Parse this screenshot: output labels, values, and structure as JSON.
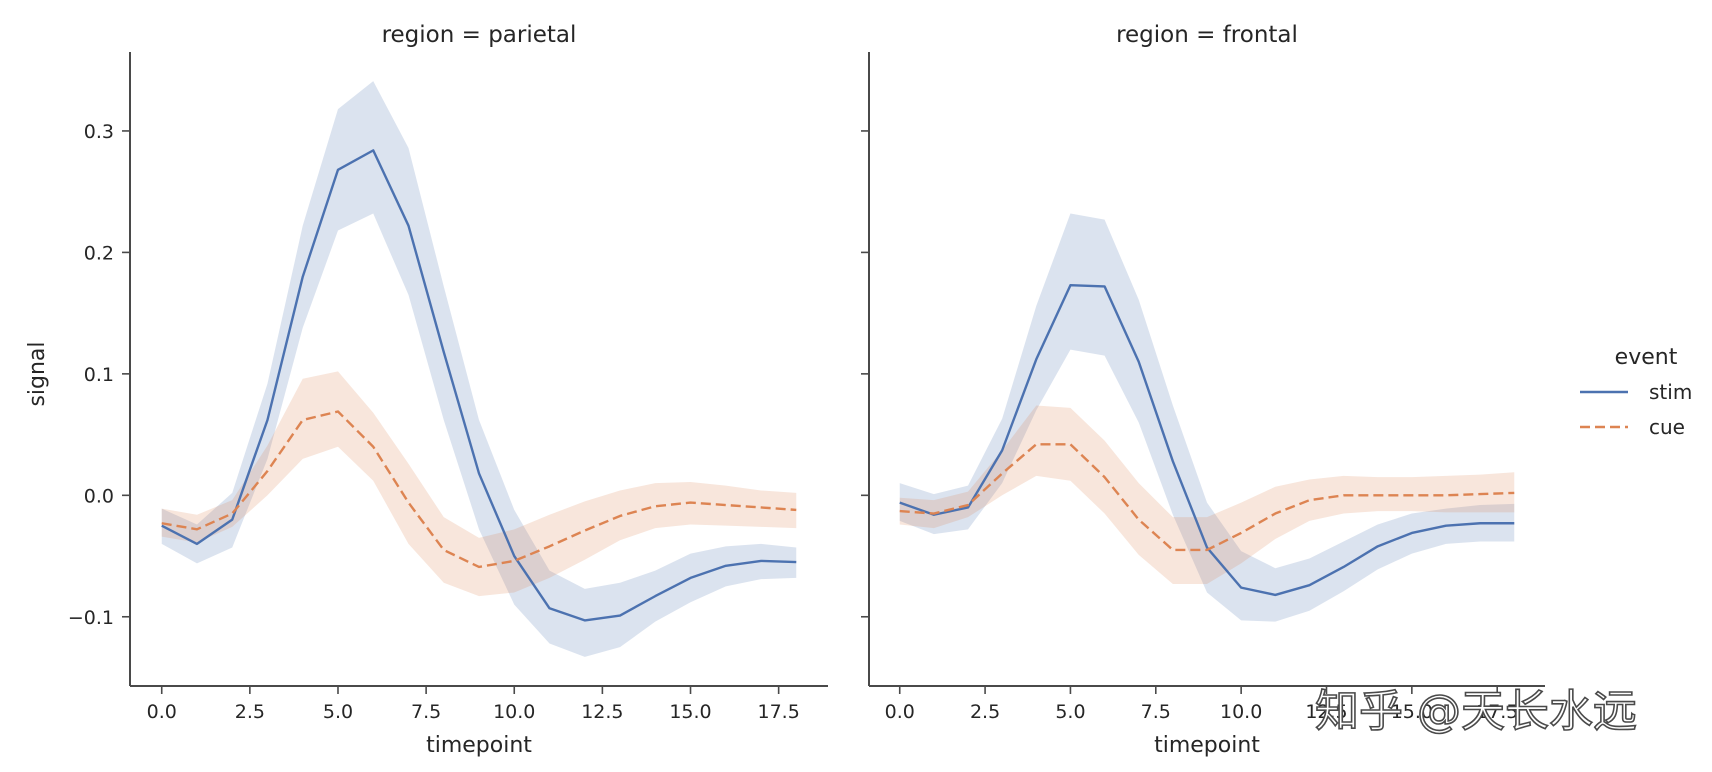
{
  "chart_data": {
    "type": "line",
    "facet_variable": "region",
    "hue_variable": "event",
    "xlabel": "timepoint",
    "ylabel": "signal",
    "xlim": [
      -0.9,
      18.9
    ],
    "ylim": [
      -0.157,
      0.365
    ],
    "xticks": [
      0,
      2.5,
      5,
      7.5,
      10,
      12.5,
      15,
      17.5
    ],
    "xtick_labels": [
      "0.0",
      "2.5",
      "5.0",
      "7.5",
      "10.0",
      "12.5",
      "15.0",
      "17.5"
    ],
    "yticks": [
      -0.1,
      0,
      0.1,
      0.2,
      0.3
    ],
    "ytick_labels": [
      "−0.1",
      "0.0",
      "0.1",
      "0.2",
      "0.3"
    ],
    "x": [
      0,
      1,
      2,
      3,
      4,
      5,
      6,
      7,
      8,
      9,
      10,
      11,
      12,
      13,
      14,
      15,
      16,
      17,
      18
    ],
    "legend": {
      "title": "event",
      "position": "right",
      "entries": [
        {
          "label": "stim",
          "color": "#4c72b0",
          "dash": "solid"
        },
        {
          "label": "cue",
          "color": "#dd8452",
          "dash": "dashed"
        }
      ]
    },
    "panels": [
      {
        "title": "region = parietal",
        "series": [
          {
            "name": "stim",
            "color": "#4c72b0",
            "dash": "solid",
            "values": [
              -0.025,
              -0.04,
              -0.02,
              0.062,
              0.18,
              0.268,
              0.284,
              0.222,
              0.118,
              0.018,
              -0.05,
              -0.093,
              -0.103,
              -0.099,
              -0.083,
              -0.068,
              -0.058,
              -0.054,
              -0.055
            ],
            "ci_low": [
              -0.04,
              -0.056,
              -0.043,
              0.03,
              0.138,
              0.218,
              0.232,
              0.165,
              0.062,
              -0.028,
              -0.09,
              -0.122,
              -0.133,
              -0.125,
              -0.104,
              -0.088,
              -0.075,
              -0.069,
              -0.068
            ],
            "ci_high": [
              -0.011,
              -0.024,
              0.002,
              0.092,
              0.222,
              0.318,
              0.341,
              0.286,
              0.172,
              0.062,
              -0.012,
              -0.062,
              -0.077,
              -0.072,
              -0.062,
              -0.048,
              -0.042,
              -0.04,
              -0.043
            ]
          },
          {
            "name": "cue",
            "color": "#dd8452",
            "dash": "dashed",
            "values": [
              -0.023,
              -0.028,
              -0.015,
              0.02,
              0.062,
              0.069,
              0.04,
              -0.006,
              -0.045,
              -0.059,
              -0.054,
              -0.042,
              -0.029,
              -0.017,
              -0.009,
              -0.006,
              -0.008,
              -0.01,
              -0.012
            ],
            "ci_low": [
              -0.034,
              -0.039,
              -0.026,
              0.0,
              0.03,
              0.04,
              0.012,
              -0.04,
              -0.072,
              -0.083,
              -0.08,
              -0.068,
              -0.053,
              -0.037,
              -0.027,
              -0.024,
              -0.025,
              -0.026,
              -0.027
            ],
            "ci_high": [
              -0.011,
              -0.016,
              -0.004,
              0.041,
              0.096,
              0.102,
              0.068,
              0.026,
              -0.018,
              -0.035,
              -0.028,
              -0.016,
              -0.005,
              0.004,
              0.01,
              0.011,
              0.008,
              0.004,
              0.002
            ]
          }
        ]
      },
      {
        "title": "region = frontal",
        "series": [
          {
            "name": "stim",
            "color": "#4c72b0",
            "dash": "solid",
            "values": [
              -0.006,
              -0.016,
              -0.01,
              0.037,
              0.112,
              0.173,
              0.172,
              0.11,
              0.028,
              -0.043,
              -0.076,
              -0.082,
              -0.074,
              -0.059,
              -0.042,
              -0.031,
              -0.025,
              -0.023,
              -0.023
            ],
            "ci_low": [
              -0.021,
              -0.032,
              -0.028,
              0.01,
              0.07,
              0.12,
              0.115,
              0.06,
              -0.016,
              -0.08,
              -0.103,
              -0.104,
              -0.095,
              -0.079,
              -0.061,
              -0.048,
              -0.04,
              -0.038,
              -0.038
            ],
            "ci_high": [
              0.01,
              0.001,
              0.008,
              0.063,
              0.156,
              0.232,
              0.227,
              0.161,
              0.074,
              -0.006,
              -0.046,
              -0.06,
              -0.052,
              -0.038,
              -0.024,
              -0.015,
              -0.011,
              -0.008,
              -0.007
            ]
          },
          {
            "name": "cue",
            "color": "#dd8452",
            "dash": "dashed",
            "values": [
              -0.013,
              -0.015,
              -0.008,
              0.018,
              0.042,
              0.042,
              0.015,
              -0.02,
              -0.045,
              -0.045,
              -0.031,
              -0.015,
              -0.004,
              0.0,
              0.0,
              0.0,
              0.0,
              0.001,
              0.002
            ],
            "ci_low": [
              -0.024,
              -0.027,
              -0.018,
              0.0,
              0.016,
              0.012,
              -0.015,
              -0.049,
              -0.073,
              -0.073,
              -0.056,
              -0.036,
              -0.021,
              -0.015,
              -0.013,
              -0.013,
              -0.014,
              -0.014,
              -0.014
            ],
            "ci_high": [
              -0.002,
              -0.004,
              0.003,
              0.037,
              0.074,
              0.072,
              0.045,
              0.01,
              -0.018,
              -0.018,
              -0.006,
              0.007,
              0.013,
              0.016,
              0.015,
              0.015,
              0.016,
              0.017,
              0.019
            ]
          }
        ]
      }
    ]
  },
  "watermark": {
    "text": "知乎 @天长水远"
  }
}
